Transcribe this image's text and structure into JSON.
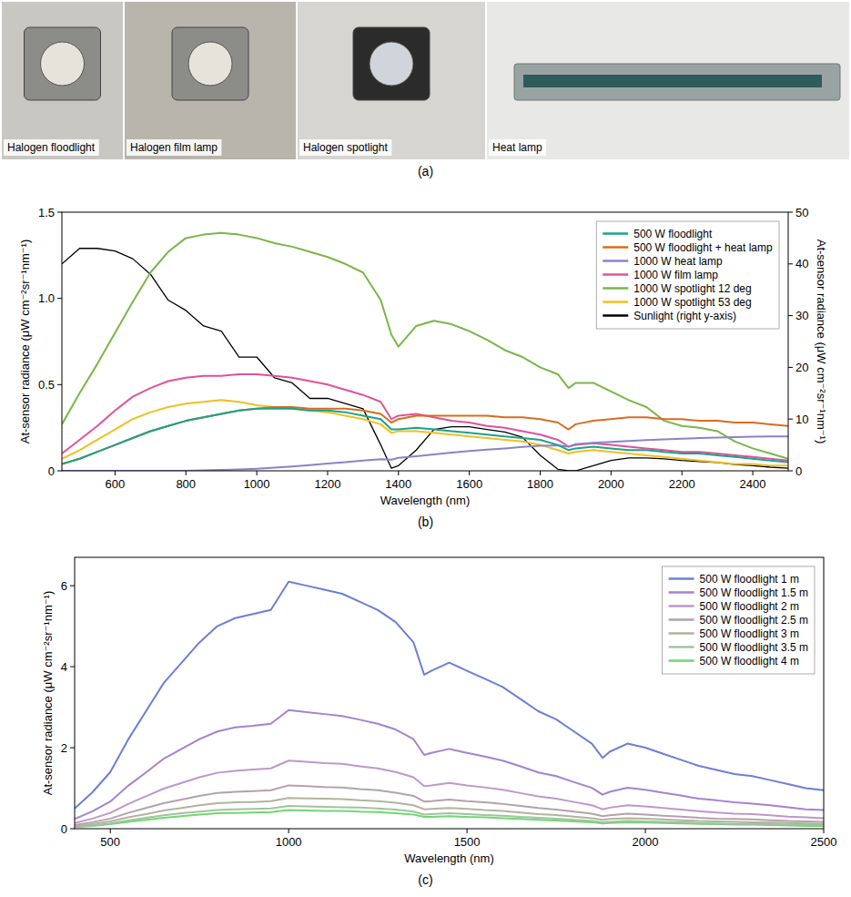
{
  "photos": {
    "label": "(a)",
    "captions": [
      "Halogen floodlight",
      "Halogen film lamp",
      "Halogen spotlight",
      "Heat lamp"
    ]
  },
  "chart_data": [
    {
      "type": "line",
      "panel_label": "(b)",
      "x_label": "Wavelength (nm)",
      "y_label": "At-sensor radiance (μW cm⁻²sr⁻¹nm⁻¹)",
      "y2_label": "At-sensor radiance (μW cm⁻²sr⁻¹nm⁻¹)",
      "xlim": [
        450,
        2500
      ],
      "xticks": [
        600,
        800,
        1000,
        1200,
        1400,
        1600,
        1800,
        2000,
        2200,
        2400
      ],
      "ylim": [
        0,
        1.5
      ],
      "yticks": [
        0,
        0.5,
        {
          "value": 1,
          "label": "1.0"
        },
        1.5
      ],
      "y2lim": [
        0,
        50
      ],
      "y2ticks": [
        0,
        10,
        20,
        30,
        40,
        50
      ],
      "grid": false,
      "legend": "upper right",
      "x": [
        450,
        500,
        550,
        600,
        650,
        700,
        750,
        800,
        850,
        900,
        950,
        1000,
        1050,
        1100,
        1150,
        1200,
        1250,
        1300,
        1350,
        1380,
        1400,
        1450,
        1500,
        1550,
        1600,
        1650,
        1700,
        1750,
        1800,
        1850,
        1880,
        1900,
        1950,
        2000,
        2050,
        2100,
        2150,
        2200,
        2250,
        2300,
        2350,
        2400,
        2450,
        2500
      ],
      "series": [
        {
          "name": "500 W floodlight",
          "color": "#1aa38a",
          "values": [
            0.04,
            0.07,
            0.11,
            0.15,
            0.19,
            0.23,
            0.26,
            0.29,
            0.31,
            0.33,
            0.35,
            0.36,
            0.36,
            0.36,
            0.35,
            0.35,
            0.34,
            0.32,
            0.3,
            0.24,
            0.24,
            0.25,
            0.24,
            0.23,
            0.22,
            0.21,
            0.2,
            0.19,
            0.18,
            0.15,
            0.12,
            0.13,
            0.14,
            0.13,
            0.12,
            0.12,
            0.11,
            0.1,
            0.1,
            0.09,
            0.08,
            0.07,
            0.06,
            0.05
          ]
        },
        {
          "name": "500 W floodlight + heat lamp",
          "color": "#d96c1e",
          "values": [
            0.04,
            0.07,
            0.11,
            0.15,
            0.19,
            0.23,
            0.26,
            0.29,
            0.31,
            0.33,
            0.35,
            0.36,
            0.37,
            0.37,
            0.36,
            0.36,
            0.36,
            0.35,
            0.33,
            0.28,
            0.3,
            0.32,
            0.32,
            0.32,
            0.32,
            0.32,
            0.31,
            0.31,
            0.3,
            0.28,
            0.24,
            0.27,
            0.29,
            0.3,
            0.31,
            0.31,
            0.3,
            0.3,
            0.29,
            0.29,
            0.28,
            0.28,
            0.27,
            0.26
          ]
        },
        {
          "name": "1000 W heat lamp",
          "color": "#8c82c8",
          "values": [
            0,
            0,
            0,
            0,
            0,
            0,
            0,
            0,
            0.003,
            0.005,
            0.008,
            0.012,
            0.018,
            0.025,
            0.033,
            0.042,
            0.05,
            0.06,
            0.067,
            0.065,
            0.075,
            0.085,
            0.095,
            0.105,
            0.115,
            0.123,
            0.13,
            0.138,
            0.145,
            0.148,
            0.14,
            0.155,
            0.162,
            0.168,
            0.173,
            0.178,
            0.182,
            0.186,
            0.19,
            0.193,
            0.196,
            0.198,
            0.2,
            0.2
          ]
        },
        {
          "name": "1000 W film lamp",
          "color": "#e0529a",
          "values": [
            0.1,
            0.18,
            0.26,
            0.35,
            0.43,
            0.48,
            0.52,
            0.54,
            0.55,
            0.55,
            0.56,
            0.56,
            0.55,
            0.54,
            0.52,
            0.5,
            0.47,
            0.44,
            0.4,
            0.3,
            0.32,
            0.33,
            0.31,
            0.29,
            0.28,
            0.26,
            0.25,
            0.23,
            0.21,
            0.18,
            0.14,
            0.15,
            0.16,
            0.15,
            0.14,
            0.13,
            0.12,
            0.11,
            0.11,
            0.1,
            0.09,
            0.08,
            0.07,
            0.06
          ]
        },
        {
          "name": "1000 W spotlight 12 deg",
          "color": "#7ab648",
          "values": [
            0.27,
            0.45,
            0.62,
            0.8,
            0.98,
            1.15,
            1.27,
            1.35,
            1.37,
            1.38,
            1.37,
            1.35,
            1.32,
            1.3,
            1.27,
            1.24,
            1.2,
            1.15,
            0.99,
            0.79,
            0.72,
            0.84,
            0.87,
            0.85,
            0.81,
            0.76,
            0.7,
            0.66,
            0.6,
            0.56,
            0.48,
            0.51,
            0.51,
            0.46,
            0.41,
            0.37,
            0.29,
            0.26,
            0.25,
            0.23,
            0.17,
            0.13,
            0.1,
            0.07
          ]
        },
        {
          "name": "1000 W spotlight 53 deg",
          "color": "#f0c020",
          "values": [
            0.07,
            0.12,
            0.18,
            0.24,
            0.3,
            0.34,
            0.37,
            0.39,
            0.4,
            0.41,
            0.4,
            0.38,
            0.37,
            0.36,
            0.35,
            0.34,
            0.32,
            0.3,
            0.27,
            0.22,
            0.23,
            0.23,
            0.22,
            0.21,
            0.2,
            0.19,
            0.18,
            0.17,
            0.15,
            0.12,
            0.1,
            0.11,
            0.12,
            0.11,
            0.1,
            0.09,
            0.08,
            0.07,
            0.06,
            0.05,
            0.04,
            0.04,
            0.03,
            0.03
          ]
        },
        {
          "name": "Sunlight (right y-axis)",
          "color": "#000000",
          "axis": "y2",
          "values": [
            40,
            43,
            43,
            42.5,
            41,
            38,
            33,
            31,
            28,
            27,
            22,
            22,
            18,
            17,
            14,
            14,
            13,
            12,
            5,
            0.5,
            1,
            4,
            8,
            8.5,
            8.5,
            8,
            7.5,
            6.5,
            3,
            0.3,
            0,
            0,
            1,
            2,
            2.5,
            2.5,
            2.3,
            2,
            1.8,
            1.6,
            1.2,
            1,
            0.7,
            0.5
          ]
        }
      ]
    },
    {
      "type": "line",
      "panel_label": "(c)",
      "x_label": "Wavelength (nm)",
      "y_label": "At-sensor radiance (μW cm⁻²sr⁻¹nm⁻¹)",
      "xlim": [
        400,
        2500
      ],
      "xticks": [
        500,
        1000,
        1500,
        2000,
        2500
      ],
      "ylim": [
        0,
        6.7
      ],
      "yticks": [
        0,
        2,
        4,
        6
      ],
      "grid": false,
      "legend": "upper right",
      "x": [
        400,
        450,
        500,
        550,
        600,
        650,
        700,
        750,
        800,
        850,
        900,
        950,
        1000,
        1050,
        1100,
        1150,
        1200,
        1250,
        1300,
        1350,
        1380,
        1400,
        1450,
        1500,
        1550,
        1600,
        1650,
        1700,
        1750,
        1800,
        1850,
        1880,
        1900,
        1950,
        2000,
        2050,
        2100,
        2150,
        2200,
        2250,
        2300,
        2350,
        2400,
        2450,
        2500
      ],
      "series": [
        {
          "name": "500 W floodlight 1 m",
          "color": "#6b7fd7",
          "values": [
            0.5,
            0.9,
            1.4,
            2.2,
            2.9,
            3.6,
            4.1,
            4.6,
            5.0,
            5.2,
            5.3,
            5.4,
            6.1,
            6.0,
            5.9,
            5.8,
            5.6,
            5.4,
            5.1,
            4.6,
            3.8,
            3.9,
            4.1,
            3.9,
            3.7,
            3.5,
            3.2,
            2.9,
            2.7,
            2.4,
            2.1,
            1.75,
            1.9,
            2.1,
            2.0,
            1.85,
            1.7,
            1.55,
            1.45,
            1.35,
            1.3,
            1.2,
            1.1,
            1.0,
            0.95
          ]
        },
        {
          "name": "500 W floodlight 1.5 m",
          "color": "#a283d2",
          "values": [
            0.24,
            0.43,
            0.67,
            1.06,
            1.39,
            1.73,
            1.97,
            2.21,
            2.4,
            2.5,
            2.54,
            2.59,
            2.93,
            2.88,
            2.83,
            2.78,
            2.69,
            2.59,
            2.45,
            2.21,
            1.82,
            1.87,
            1.97,
            1.87,
            1.78,
            1.68,
            1.54,
            1.39,
            1.3,
            1.15,
            1.01,
            0.84,
            0.91,
            1.01,
            0.96,
            0.89,
            0.82,
            0.74,
            0.7,
            0.65,
            0.62,
            0.58,
            0.53,
            0.48,
            0.46
          ]
        },
        {
          "name": "500 W floodlight 2 m",
          "color": "#bd98cc",
          "values": [
            0.14,
            0.25,
            0.39,
            0.61,
            0.8,
            0.99,
            1.13,
            1.27,
            1.38,
            1.43,
            1.46,
            1.49,
            1.68,
            1.65,
            1.62,
            1.6,
            1.54,
            1.49,
            1.4,
            1.27,
            1.05,
            1.07,
            1.13,
            1.07,
            1.02,
            0.96,
            0.88,
            0.8,
            0.74,
            0.66,
            0.58,
            0.48,
            0.52,
            0.58,
            0.55,
            0.51,
            0.47,
            0.43,
            0.4,
            0.37,
            0.36,
            0.33,
            0.3,
            0.28,
            0.26
          ]
        },
        {
          "name": "500 W floodlight 2.5 m",
          "color": "#b3a2ab",
          "values": [
            0.09,
            0.16,
            0.25,
            0.39,
            0.51,
            0.63,
            0.72,
            0.81,
            0.88,
            0.91,
            0.93,
            0.95,
            1.07,
            1.05,
            1.03,
            1.02,
            0.98,
            0.95,
            0.89,
            0.81,
            0.67,
            0.68,
            0.72,
            0.68,
            0.65,
            0.61,
            0.56,
            0.51,
            0.47,
            0.42,
            0.37,
            0.31,
            0.33,
            0.37,
            0.35,
            0.32,
            0.3,
            0.27,
            0.25,
            0.24,
            0.23,
            0.21,
            0.19,
            0.18,
            0.17
          ]
        },
        {
          "name": "500 W floodlight 3 m",
          "color": "#b2b3a0",
          "values": [
            0.06,
            0.11,
            0.18,
            0.28,
            0.36,
            0.45,
            0.51,
            0.58,
            0.63,
            0.65,
            0.66,
            0.68,
            0.76,
            0.75,
            0.74,
            0.73,
            0.7,
            0.68,
            0.64,
            0.58,
            0.48,
            0.49,
            0.51,
            0.49,
            0.46,
            0.44,
            0.4,
            0.36,
            0.34,
            0.3,
            0.26,
            0.22,
            0.24,
            0.26,
            0.25,
            0.23,
            0.21,
            0.19,
            0.18,
            0.17,
            0.16,
            0.15,
            0.14,
            0.13,
            0.12
          ]
        },
        {
          "name": "500 W floodlight 3.5 m",
          "color": "#9fc49f",
          "values": [
            0.05,
            0.08,
            0.13,
            0.2,
            0.27,
            0.33,
            0.38,
            0.42,
            0.46,
            0.48,
            0.49,
            0.5,
            0.56,
            0.55,
            0.54,
            0.53,
            0.52,
            0.5,
            0.47,
            0.42,
            0.35,
            0.36,
            0.38,
            0.36,
            0.34,
            0.32,
            0.29,
            0.27,
            0.25,
            0.22,
            0.19,
            0.16,
            0.17,
            0.19,
            0.18,
            0.17,
            0.16,
            0.14,
            0.13,
            0.12,
            0.12,
            0.11,
            0.1,
            0.09,
            0.09
          ]
        },
        {
          "name": "500 W floodlight 4 m",
          "color": "#72d672",
          "values": [
            0.04,
            0.07,
            0.11,
            0.17,
            0.22,
            0.27,
            0.31,
            0.35,
            0.38,
            0.39,
            0.4,
            0.41,
            0.46,
            0.45,
            0.44,
            0.44,
            0.42,
            0.41,
            0.38,
            0.35,
            0.29,
            0.29,
            0.31,
            0.29,
            0.28,
            0.26,
            0.24,
            0.22,
            0.2,
            0.18,
            0.16,
            0.13,
            0.14,
            0.16,
            0.15,
            0.14,
            0.13,
            0.12,
            0.11,
            0.1,
            0.1,
            0.09,
            0.08,
            0.07,
            0.07
          ]
        }
      ]
    }
  ]
}
